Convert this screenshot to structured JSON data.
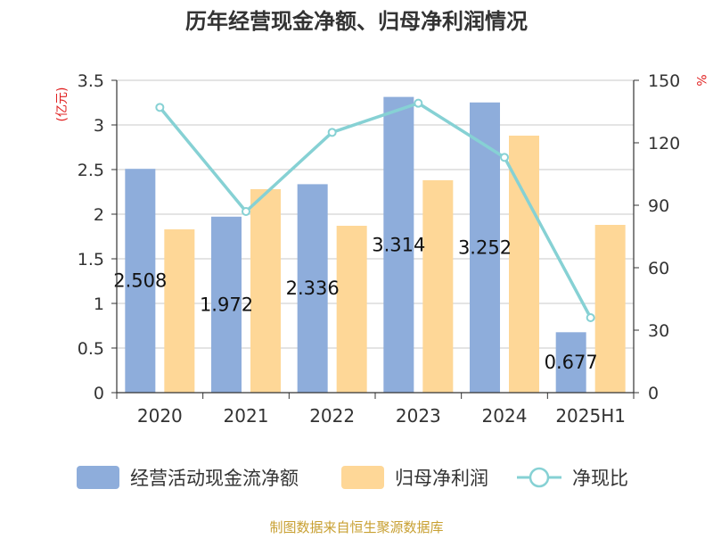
{
  "chart_data": {
    "type": "bar",
    "title": "历年经营现金净额、归母净利润情况",
    "categories": [
      "2020",
      "2021",
      "2022",
      "2023",
      "2024",
      "2025H1"
    ],
    "y_left": {
      "label": "(亿元)",
      "min": 0,
      "max": 3.5,
      "ticks": [
        "0",
        "0.5",
        "1",
        "1.5",
        "2",
        "2.5",
        "3",
        "3.5"
      ]
    },
    "y_right": {
      "label": "%",
      "min": 0,
      "max": 150,
      "ticks": [
        "0",
        "30",
        "60",
        "90",
        "120",
        "150"
      ]
    },
    "series": [
      {
        "name": "经营活动现金流净额",
        "kind": "bar",
        "axis": "left",
        "color": "#8eaddb",
        "values": [
          2.508,
          1.972,
          2.336,
          3.314,
          3.252,
          0.677
        ],
        "labels": [
          "2.508",
          "1.972",
          "2.336",
          "3.314",
          "3.252",
          "0.677"
        ]
      },
      {
        "name": "归母净利润",
        "kind": "bar",
        "axis": "left",
        "color": "#fed797",
        "values": [
          1.83,
          2.28,
          1.87,
          2.38,
          2.88,
          1.88
        ]
      },
      {
        "name": "净现比",
        "kind": "line",
        "axis": "right",
        "color": "#86d1d4",
        "values": [
          137,
          87,
          125,
          139,
          113,
          36
        ]
      }
    ],
    "grid": true,
    "legend": "bottom",
    "source": "制图数据来自恒生聚源数据库",
    "colors": {
      "title": "#333333",
      "axis_label": "#e02020",
      "source": "#c8a032",
      "grid": "#c8c8c8",
      "axis": "#333333"
    }
  }
}
